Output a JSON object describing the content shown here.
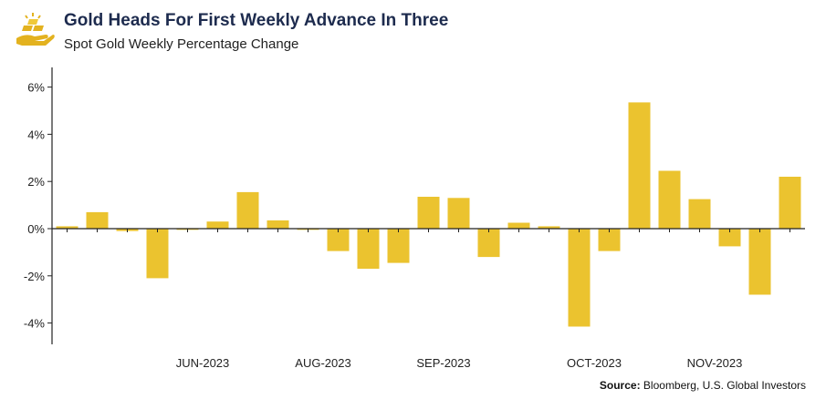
{
  "header": {
    "title": "Gold Heads For First Weekly Advance In Three",
    "subtitle": "Spot Gold Weekly Percentage Change",
    "logo_icon": "gold-bars-hand-icon"
  },
  "source": {
    "label": "Source:",
    "text": "Bloomberg, U.S. Global Investors"
  },
  "colors": {
    "bar": "#ebc32f",
    "axis": "#222222",
    "title": "#1d2b4e"
  },
  "chart_data": {
    "type": "bar",
    "title": "Gold Heads For First Weekly Advance In Three",
    "subtitle": "Spot Gold Weekly Percentage Change",
    "xlabel": "",
    "ylabel": "",
    "ylim": [
      -5,
      6.5
    ],
    "yticks": [
      6,
      4,
      2,
      0,
      -2,
      -4
    ],
    "ytick_labels": [
      "6%",
      "4%",
      "2%",
      "0%",
      "-2%",
      "-4%"
    ],
    "xtick_labels": [
      {
        "label": "JUN-2023",
        "index": 4.5
      },
      {
        "label": "AUG-2023",
        "index": 8.5
      },
      {
        "label": "SEP-2023",
        "index": 12.5
      },
      {
        "label": "OCT-2023",
        "index": 17.5
      },
      {
        "label": "NOV-2023",
        "index": 21.5
      }
    ],
    "grid": false,
    "legend": "none",
    "values": [
      0.1,
      0.7,
      -0.1,
      -2.1,
      -0.05,
      0.3,
      1.55,
      0.35,
      -0.05,
      -0.95,
      -1.7,
      -1.45,
      1.35,
      1.3,
      -1.2,
      0.25,
      0.1,
      -4.15,
      -0.95,
      5.35,
      2.45,
      1.25,
      -0.75,
      -2.8,
      2.2
    ]
  }
}
